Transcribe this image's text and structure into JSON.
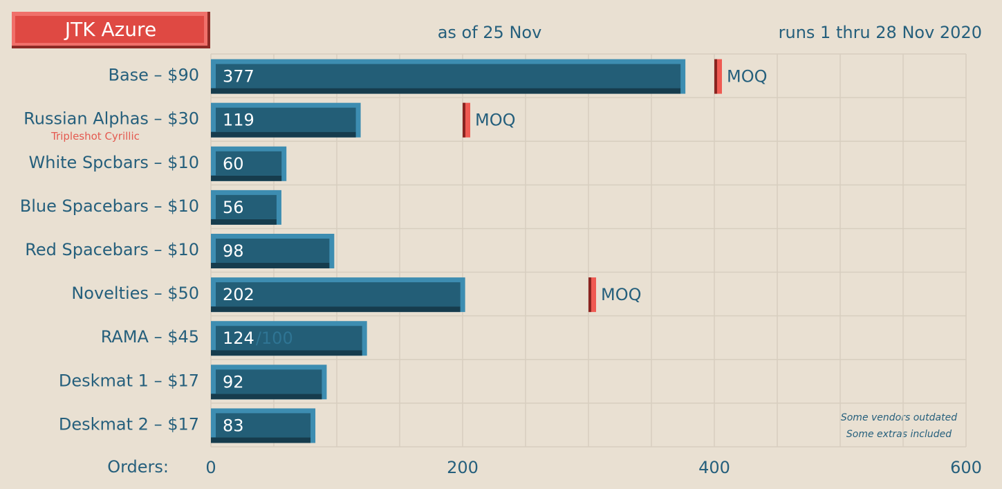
{
  "chart_data": {
    "type": "bar",
    "orientation": "horizontal",
    "title": "JTK Azure",
    "subtitle": "as of 25 Nov",
    "run_note": "runs 1 thru 28 Nov 2020",
    "x_label": "Orders:",
    "categories": [
      "Base – $90",
      "Russian Alphas – $30",
      "White Spcbars – $10",
      "Blue Spacebars – $10",
      "Red Spacebars – $10",
      "Novelties – $50",
      "RAMA – $45",
      "Deskmat 1 – $17",
      "Deskmat 2 – $17"
    ],
    "sublabels": [
      null,
      "Tripleshot Cyrillic",
      null,
      null,
      null,
      null,
      null,
      null,
      null
    ],
    "values": [
      377,
      119,
      60,
      56,
      98,
      202,
      124,
      92,
      83
    ],
    "caps": [
      null,
      null,
      null,
      null,
      null,
      null,
      100,
      null,
      null
    ],
    "cap_labels": [
      null,
      null,
      null,
      null,
      null,
      null,
      "/100",
      null,
      null
    ],
    "moq": [
      400,
      200,
      null,
      null,
      null,
      300,
      null,
      null,
      null
    ],
    "moq_label": "MOQ",
    "color": "#235e77",
    "xlim": [
      0,
      600
    ],
    "xticks": [
      0,
      200,
      400,
      600
    ],
    "x_minor_ticks": [
      50,
      100,
      150,
      250,
      300,
      350,
      450,
      500,
      550
    ],
    "grid": true,
    "notes": [
      "Some vendors outdated",
      "Some extras included"
    ]
  }
}
